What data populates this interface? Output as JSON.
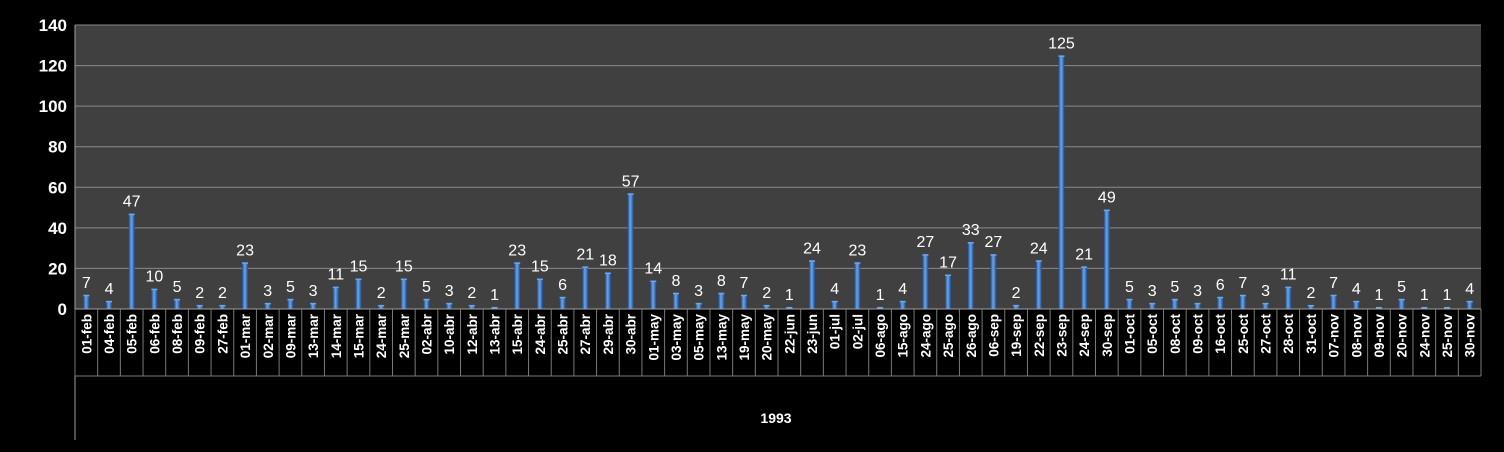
{
  "colors": {
    "background": "#000000",
    "plot_area": "#404040",
    "grid": "#8a8a8a",
    "bar_light": "#6ea6ea",
    "bar_mid": "#3b78c8",
    "bar_dark": "#1c4a8c",
    "text": "#ffffff"
  },
  "chart_data": {
    "type": "bar",
    "title": "",
    "xlabel": "",
    "ylabel": "",
    "group_label": "1993",
    "ylim": [
      0,
      140
    ],
    "yticks": [
      0,
      20,
      40,
      60,
      80,
      100,
      120,
      140
    ],
    "grid": true,
    "legend": "none",
    "categories": [
      "01-feb",
      "04-feb",
      "05-feb",
      "06-feb",
      "08-feb",
      "09-feb",
      "27-feb",
      "01-mar",
      "02-mar",
      "09-mar",
      "13-mar",
      "14-mar",
      "15-mar",
      "24-mar",
      "25-mar",
      "02-abr",
      "10-abr",
      "12-abr",
      "13-abr",
      "15-abr",
      "24-abr",
      "25-abr",
      "27-abr",
      "29-abr",
      "30-abr",
      "01-may",
      "03-may",
      "05-may",
      "13-may",
      "19-may",
      "20-may",
      "22-jun",
      "23-jun",
      "01-jul",
      "02-jul",
      "06-ago",
      "15-ago",
      "24-ago",
      "25-ago",
      "26-ago",
      "06-sep",
      "19-sep",
      "22-sep",
      "23-sep",
      "24-sep",
      "30-sep",
      "01-oct",
      "05-oct",
      "08-oct",
      "09-oct",
      "16-oct",
      "25-oct",
      "27-oct",
      "28-oct",
      "31-oct",
      "07-nov",
      "08-nov",
      "09-nov",
      "20-nov",
      "24-nov",
      "25-nov",
      "30-nov"
    ],
    "values": [
      7,
      4,
      47,
      10,
      5,
      2,
      2,
      23,
      3,
      5,
      3,
      11,
      15,
      2,
      15,
      5,
      3,
      2,
      1,
      23,
      15,
      6,
      21,
      18,
      57,
      14,
      8,
      3,
      8,
      7,
      2,
      1,
      24,
      4,
      23,
      1,
      4,
      27,
      17,
      33,
      27,
      2,
      24,
      125,
      21,
      49,
      5,
      3,
      5,
      3,
      6,
      7,
      3,
      11,
      2,
      7,
      4,
      1,
      5,
      1,
      1,
      4
    ]
  }
}
